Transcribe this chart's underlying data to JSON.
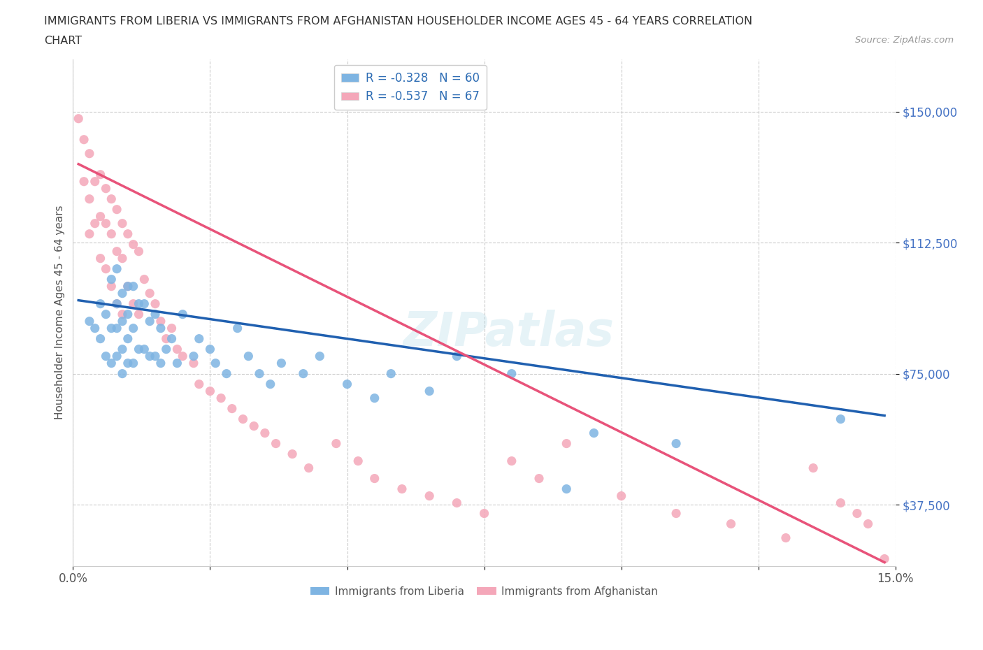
{
  "title_line1": "IMMIGRANTS FROM LIBERIA VS IMMIGRANTS FROM AFGHANISTAN HOUSEHOLDER INCOME AGES 45 - 64 YEARS CORRELATION",
  "title_line2": "CHART",
  "source": "Source: ZipAtlas.com",
  "ylabel": "Householder Income Ages 45 - 64 years",
  "xlim": [
    0.0,
    0.15
  ],
  "ylim": [
    20000,
    165000
  ],
  "yticks": [
    37500,
    75000,
    112500,
    150000
  ],
  "ytick_labels": [
    "$37,500",
    "$75,000",
    "$112,500",
    "$150,000"
  ],
  "xticks": [
    0.0,
    0.025,
    0.05,
    0.075,
    0.1,
    0.125,
    0.15
  ],
  "xtick_labels": [
    "0.0%",
    "",
    "",
    "",
    "",
    "",
    "15.0%"
  ],
  "legend_r1": "R = -0.328",
  "legend_n1": "N = 60",
  "legend_r2": "R = -0.537",
  "legend_n2": "N = 67",
  "color_liberia": "#7EB4E2",
  "color_afghanistan": "#F4A7B9",
  "color_line_liberia": "#2060B0",
  "color_line_afghanistan": "#E8537A",
  "watermark": "ZIPatlas",
  "lib_line_x0": 0.001,
  "lib_line_x1": 0.148,
  "lib_line_y0": 96000,
  "lib_line_y1": 63000,
  "afg_line_x0": 0.001,
  "afg_line_x1": 0.148,
  "afg_line_y0": 135000,
  "afg_line_y1": 21000,
  "liberia_x": [
    0.003,
    0.004,
    0.005,
    0.005,
    0.006,
    0.006,
    0.007,
    0.007,
    0.007,
    0.008,
    0.008,
    0.008,
    0.008,
    0.009,
    0.009,
    0.009,
    0.009,
    0.01,
    0.01,
    0.01,
    0.01,
    0.011,
    0.011,
    0.011,
    0.012,
    0.012,
    0.013,
    0.013,
    0.014,
    0.014,
    0.015,
    0.015,
    0.016,
    0.016,
    0.017,
    0.018,
    0.019,
    0.02,
    0.022,
    0.023,
    0.025,
    0.026,
    0.028,
    0.03,
    0.032,
    0.034,
    0.036,
    0.038,
    0.042,
    0.045,
    0.05,
    0.055,
    0.058,
    0.065,
    0.07,
    0.08,
    0.09,
    0.095,
    0.11,
    0.14
  ],
  "liberia_y": [
    90000,
    88000,
    95000,
    85000,
    92000,
    80000,
    102000,
    88000,
    78000,
    105000,
    95000,
    88000,
    80000,
    98000,
    90000,
    82000,
    75000,
    100000,
    92000,
    85000,
    78000,
    100000,
    88000,
    78000,
    95000,
    82000,
    95000,
    82000,
    90000,
    80000,
    92000,
    80000,
    88000,
    78000,
    82000,
    85000,
    78000,
    92000,
    80000,
    85000,
    82000,
    78000,
    75000,
    88000,
    80000,
    75000,
    72000,
    78000,
    75000,
    80000,
    72000,
    68000,
    75000,
    70000,
    80000,
    75000,
    42000,
    58000,
    55000,
    62000
  ],
  "afghanistan_x": [
    0.001,
    0.002,
    0.002,
    0.003,
    0.003,
    0.003,
    0.004,
    0.004,
    0.005,
    0.005,
    0.005,
    0.006,
    0.006,
    0.006,
    0.007,
    0.007,
    0.007,
    0.008,
    0.008,
    0.008,
    0.009,
    0.009,
    0.009,
    0.01,
    0.01,
    0.011,
    0.011,
    0.012,
    0.012,
    0.013,
    0.014,
    0.015,
    0.016,
    0.017,
    0.018,
    0.019,
    0.02,
    0.022,
    0.023,
    0.025,
    0.027,
    0.029,
    0.031,
    0.033,
    0.035,
    0.037,
    0.04,
    0.043,
    0.048,
    0.052,
    0.055,
    0.06,
    0.065,
    0.07,
    0.075,
    0.08,
    0.085,
    0.09,
    0.1,
    0.11,
    0.12,
    0.13,
    0.135,
    0.14,
    0.143,
    0.145,
    0.148
  ],
  "afghanistan_y": [
    148000,
    142000,
    130000,
    138000,
    125000,
    115000,
    130000,
    118000,
    132000,
    120000,
    108000,
    128000,
    118000,
    105000,
    125000,
    115000,
    100000,
    122000,
    110000,
    95000,
    118000,
    108000,
    92000,
    115000,
    100000,
    112000,
    95000,
    110000,
    92000,
    102000,
    98000,
    95000,
    90000,
    85000,
    88000,
    82000,
    80000,
    78000,
    72000,
    70000,
    68000,
    65000,
    62000,
    60000,
    58000,
    55000,
    52000,
    48000,
    55000,
    50000,
    45000,
    42000,
    40000,
    38000,
    35000,
    50000,
    45000,
    55000,
    40000,
    35000,
    32000,
    28000,
    48000,
    38000,
    35000,
    32000,
    22000
  ]
}
